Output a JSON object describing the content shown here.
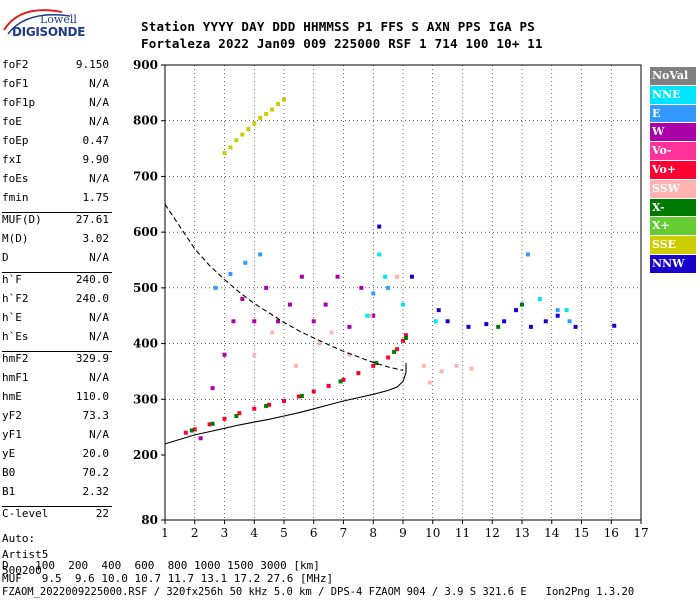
{
  "logo": {
    "top": "Lowell",
    "bottom": "DIGISONDE"
  },
  "header": {
    "row1": "Station   YYYY DAY   DDD HHMMSS P1  FFS S AXN PPS IGA PS",
    "row2": "Fortaleza 2022 Jan09 009 225000 RSF     1 714 100 10+ 11"
  },
  "parameters": [
    {
      "label": "foF2",
      "value": "9.150"
    },
    {
      "label": "foF1",
      "value": "N/A"
    },
    {
      "label": "foF1p",
      "value": "N/A"
    },
    {
      "label": "foE",
      "value": "N/A"
    },
    {
      "label": "foEp",
      "value": "0.47"
    },
    {
      "label": "fxI",
      "value": "9.90"
    },
    {
      "label": "foEs",
      "value": "N/A"
    },
    {
      "label": "fmin",
      "value": "1.75"
    },
    {
      "label": "MUF(D)",
      "value": "27.61"
    },
    {
      "label": "M(D)",
      "value": "3.02"
    },
    {
      "label": "D",
      "value": "N/A"
    },
    {
      "label": "h`F",
      "value": "240.0"
    },
    {
      "label": "h`F2",
      "value": "240.0"
    },
    {
      "label": "h`E",
      "value": "N/A"
    },
    {
      "label": "h`Es",
      "value": "N/A"
    },
    {
      "label": "hmF2",
      "value": "329.9"
    },
    {
      "label": "hmF1",
      "value": "N/A"
    },
    {
      "label": "hmE",
      "value": "110.0"
    },
    {
      "label": "yF2",
      "value": "73.3"
    },
    {
      "label": "yF1",
      "value": "N/A"
    },
    {
      "label": "yE",
      "value": "20.0"
    },
    {
      "label": "B0",
      "value": "70.2"
    },
    {
      "label": "B1",
      "value": "2.32"
    },
    {
      "label": "C-level",
      "value": "22"
    }
  ],
  "auto": {
    "line1": "Auto:",
    "line2": "Artist5",
    "line3": "500200"
  },
  "legend": [
    {
      "label": "NoVal",
      "color": "#808080"
    },
    {
      "label": "NNE",
      "color": "#00e5ff"
    },
    {
      "label": "E",
      "color": "#3399ff"
    },
    {
      "label": "W",
      "color": "#aa00aa"
    },
    {
      "label": "Vo-",
      "color": "#ff3399"
    },
    {
      "label": "Vo+",
      "color": "#ff0033"
    },
    {
      "label": "SSW",
      "color": "#ffb3b3"
    },
    {
      "label": "X-",
      "color": "#007a00"
    },
    {
      "label": "X+",
      "color": "#66cc33"
    },
    {
      "label": "SSE",
      "color": "#cccc00"
    },
    {
      "label": "NNW",
      "color": "#1a00cc"
    }
  ],
  "chart_data": {
    "type": "scatter",
    "x_ticks": [
      "1",
      "2",
      "3",
      "4",
      "5",
      "6",
      "7",
      "8",
      "9",
      "10",
      "11",
      "12",
      "13",
      "14",
      "15",
      "16",
      "17"
    ],
    "y_ticks": [
      "80",
      "200",
      "300",
      "400",
      "500",
      "600",
      "700",
      "800",
      "900"
    ],
    "xlim": [
      1,
      17
    ],
    "grid": true,
    "traces": [
      {
        "name": "",
        "color": "#ff0033",
        "points": [
          [
            1.7,
            240
          ],
          [
            2,
            246
          ],
          [
            2.5,
            255
          ],
          [
            3,
            265
          ],
          [
            3.5,
            275
          ],
          [
            4,
            283
          ],
          [
            4.5,
            290
          ],
          [
            5,
            297
          ],
          [
            5.5,
            305
          ],
          [
            6,
            314
          ],
          [
            6.5,
            324
          ],
          [
            7,
            335
          ],
          [
            7.5,
            347
          ],
          [
            8,
            360
          ],
          [
            8.5,
            375
          ],
          [
            8.8,
            390
          ],
          [
            9.0,
            405
          ],
          [
            9.1,
            415
          ]
        ]
      },
      {
        "name": "",
        "color": "#aa00aa",
        "points": [
          [
            2.2,
            230
          ],
          [
            2.6,
            320
          ],
          [
            3.0,
            380
          ],
          [
            3.3,
            440
          ],
          [
            3.6,
            480
          ],
          [
            4.0,
            440
          ],
          [
            4.4,
            500
          ],
          [
            4.8,
            440
          ],
          [
            5.2,
            470
          ],
          [
            5.6,
            520
          ],
          [
            6.0,
            440
          ],
          [
            6.4,
            470
          ],
          [
            6.8,
            520
          ],
          [
            7.2,
            430
          ],
          [
            7.6,
            500
          ],
          [
            8.0,
            450
          ]
        ]
      },
      {
        "name": "",
        "color": "#1a00cc",
        "points": [
          [
            8.2,
            610
          ],
          [
            9.3,
            520
          ],
          [
            10.2,
            460
          ],
          [
            10.5,
            440
          ],
          [
            11.2,
            430
          ],
          [
            11.8,
            435
          ],
          [
            12.4,
            440
          ],
          [
            12.8,
            460
          ],
          [
            13.3,
            430
          ],
          [
            13.8,
            440
          ],
          [
            14.2,
            450
          ],
          [
            14.8,
            430
          ],
          [
            16.1,
            432
          ]
        ]
      },
      {
        "name": "",
        "color": "#cccc00",
        "points": [
          [
            3.0,
            742
          ],
          [
            3.2,
            752
          ],
          [
            3.4,
            765
          ],
          [
            3.6,
            775
          ],
          [
            3.8,
            785
          ],
          [
            4.0,
            795
          ],
          [
            4.2,
            805
          ],
          [
            4.4,
            812
          ],
          [
            4.6,
            820
          ],
          [
            4.8,
            830
          ],
          [
            5.0,
            838
          ]
        ]
      },
      {
        "name": "",
        "color": "#3399ff",
        "points": [
          [
            2.7,
            500
          ],
          [
            3.2,
            525
          ],
          [
            3.7,
            545
          ],
          [
            4.2,
            560
          ],
          [
            8.0,
            490
          ],
          [
            8.5,
            500
          ],
          [
            13.2,
            560
          ],
          [
            14.2,
            460
          ],
          [
            14.6,
            440
          ]
        ]
      },
      {
        "name": "",
        "color": "#ffb3b3",
        "points": [
          [
            4.0,
            380
          ],
          [
            4.6,
            420
          ],
          [
            5.4,
            360
          ],
          [
            6.2,
            400
          ],
          [
            6.6,
            420
          ],
          [
            7.2,
            380
          ],
          [
            7.9,
            450
          ],
          [
            8.8,
            520
          ],
          [
            9.7,
            360
          ],
          [
            9.9,
            330
          ],
          [
            10.3,
            350
          ],
          [
            10.8,
            360
          ],
          [
            11.3,
            355
          ]
        ]
      },
      {
        "name": "",
        "color": "#00e5ff",
        "points": [
          [
            7.8,
            450
          ],
          [
            8.2,
            560
          ],
          [
            8.4,
            520
          ],
          [
            9.0,
            470
          ],
          [
            10.1,
            440
          ],
          [
            13.6,
            480
          ],
          [
            14.5,
            460
          ]
        ]
      },
      {
        "name": "",
        "color": "#007a00",
        "points": [
          [
            1.9,
            244
          ],
          [
            2.6,
            256
          ],
          [
            3.4,
            270
          ],
          [
            4.4,
            288
          ],
          [
            5.6,
            306
          ],
          [
            6.9,
            332
          ],
          [
            8.1,
            365
          ],
          [
            8.7,
            385
          ],
          [
            9.1,
            410
          ],
          [
            12.2,
            430
          ],
          [
            13.0,
            470
          ]
        ]
      }
    ],
    "curves": [
      {
        "name": "",
        "style": "solid",
        "points": [
          [
            1.0,
            220
          ],
          [
            1.5,
            228
          ],
          [
            2.0,
            236
          ],
          [
            2.5,
            242
          ],
          [
            3.0,
            248
          ],
          [
            3.5,
            254
          ],
          [
            4.0,
            259
          ],
          [
            4.5,
            264
          ],
          [
            5.0,
            270
          ],
          [
            5.5,
            276
          ],
          [
            6.0,
            283
          ],
          [
            6.5,
            290
          ],
          [
            7.0,
            297
          ],
          [
            7.5,
            303
          ],
          [
            8.0,
            309
          ],
          [
            8.5,
            316
          ],
          [
            8.8,
            322
          ],
          [
            9.0,
            332
          ],
          [
            9.1,
            348
          ],
          [
            9.1,
            365
          ]
        ]
      },
      {
        "name": "",
        "style": "dashed",
        "points": [
          [
            1.0,
            650
          ],
          [
            1.5,
            610
          ],
          [
            2.0,
            570
          ],
          [
            2.5,
            540
          ],
          [
            3.0,
            515
          ],
          [
            3.5,
            492
          ],
          [
            4.0,
            472
          ],
          [
            4.5,
            455
          ],
          [
            5.0,
            438
          ],
          [
            5.5,
            423
          ],
          [
            6.0,
            410
          ],
          [
            6.5,
            398
          ],
          [
            7.0,
            386
          ],
          [
            7.5,
            376
          ],
          [
            8.0,
            366
          ],
          [
            8.5,
            358
          ],
          [
            9.0,
            352
          ]
        ]
      }
    ]
  },
  "bottom": {
    "d_row": "D    100  200  400  600  800 1000 1500 3000 [km]",
    "muf_row": "MUF   9.5  9.6 10.0 10.7 11.7 13.1 17.2 27.6 [MHz]",
    "footer": "FZAOM_2022009225000.RSF / 320fx256h 50 kHz 5.0 km / DPS-4 FZAOM 904 / 3.9 S 321.6 E   Ion2Png 1.3.20"
  }
}
